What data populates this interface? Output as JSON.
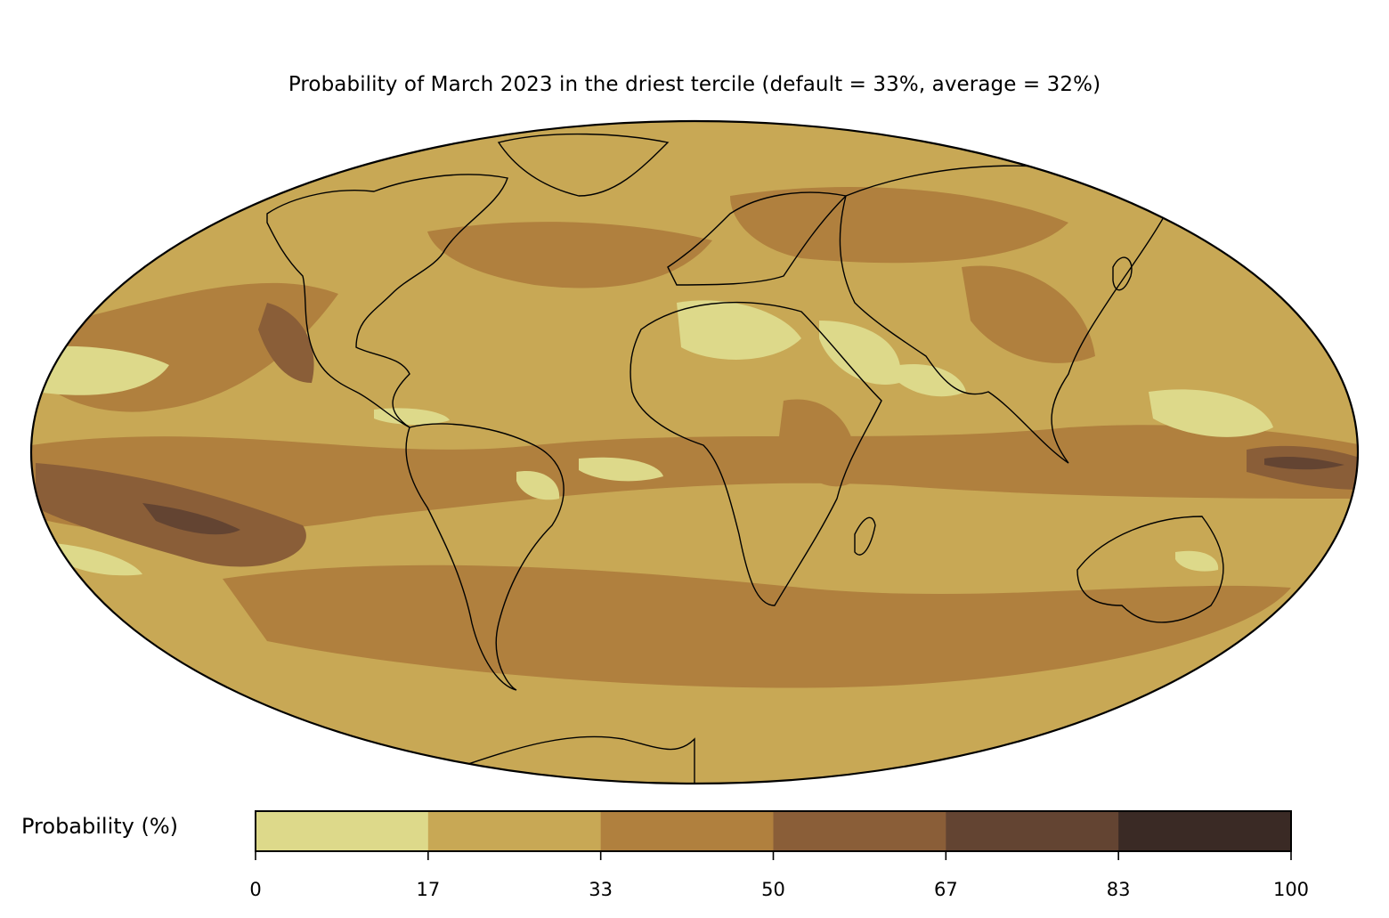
{
  "title": "Probability of March 2023 in the driest tercile (default = 33%, average = 32%)",
  "colorbar": {
    "label": "Probability (%)",
    "ticks": [
      "0",
      "17",
      "33",
      "50",
      "67",
      "83",
      "100"
    ],
    "bins": [
      {
        "from": 0,
        "to": 17,
        "color": "#ddd98a"
      },
      {
        "from": 17,
        "to": 33,
        "color": "#c8a855"
      },
      {
        "from": 33,
        "to": 50,
        "color": "#b0803e"
      },
      {
        "from": 50,
        "to": 67,
        "color": "#8a5e38"
      },
      {
        "from": 67,
        "to": 83,
        "color": "#634432"
      },
      {
        "from": 83,
        "to": 100,
        "color": "#3a2a25"
      }
    ]
  },
  "map": {
    "projection": "Mollweide",
    "background_color": "#c8a855",
    "coastline_color": "#000000",
    "border_color": "#808080"
  }
}
